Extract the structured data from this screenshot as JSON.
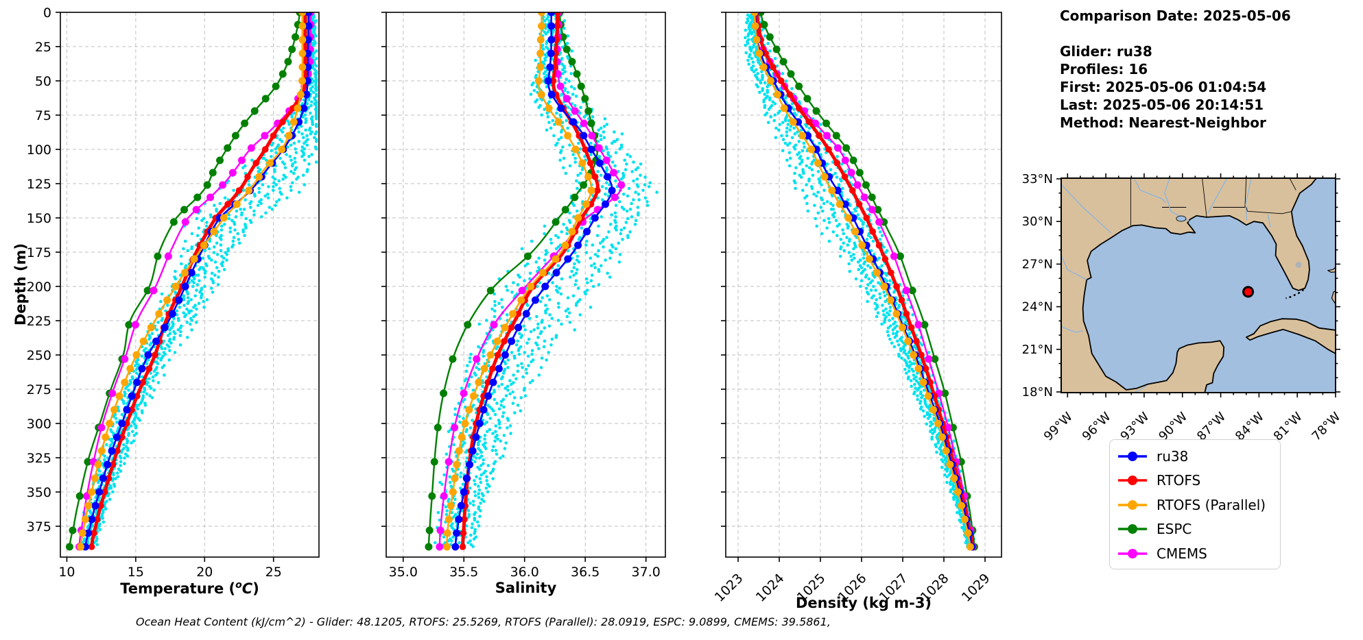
{
  "info": {
    "comparison_date": "Comparison Date: 2025-05-06",
    "glider": "Glider: ru38",
    "profiles": "Profiles: 16",
    "first": "First: 2025-05-06 01:04:54",
    "last": "Last: 2025-05-06 20:14:51",
    "method": "Method: Nearest-Neighbor"
  },
  "footer": {
    "text": "Ocean Heat Content (kJ/cm^2) - Glider: 48.1205,  RTOFS: 25.5269,  RTOFS (Parallel): 28.0919,  ESPC: 9.0899,  CMEMS: 39.5861,"
  },
  "legend": {
    "entries": [
      {
        "label": "ru38",
        "color": "#0000FF"
      },
      {
        "label": "RTOFS",
        "color": "#FF0000"
      },
      {
        "label": "RTOFS (Parallel)",
        "color": "#FFA500"
      },
      {
        "label": "ESPC",
        "color": "#008000"
      },
      {
        "label": "CMEMS",
        "color": "#FF00FF"
      }
    ]
  },
  "chart_data": [
    {
      "type": "line",
      "id": "temperature",
      "xlabel_pre": "Temperature (",
      "xlabel_sup": "o",
      "xlabel_c": "C",
      "xlabel_post": ")",
      "ylabel": "Depth (m)",
      "xlim": [
        9.53,
        28.3
      ],
      "xticks": [
        10,
        15,
        20,
        25
      ],
      "xtick_labels": [
        "10",
        "15",
        "20",
        "25"
      ],
      "ylim": [
        0,
        397.5
      ],
      "yticks": [
        0,
        25,
        50,
        75,
        100,
        125,
        150,
        175,
        200,
        225,
        250,
        275,
        300,
        325,
        350,
        375
      ],
      "grid": true,
      "depths": [
        0,
        10,
        25,
        40,
        55,
        70,
        85,
        100,
        115,
        130,
        150,
        175,
        200,
        225,
        250,
        275,
        300,
        325,
        350,
        375,
        390
      ],
      "series": [
        {
          "name": "ru38",
          "color": "#0000FF",
          "values": [
            27.55,
            27.55,
            27.5,
            27.5,
            27.45,
            27.2,
            26.6,
            25.7,
            24.5,
            23.3,
            21.1,
            19.75,
            18.6,
            17.4,
            15.9,
            14.9,
            14.0,
            13.1,
            12.35,
            11.7,
            11.35
          ]
        },
        {
          "name": "RTOFS",
          "color": "#FF0000",
          "values": [
            27.3,
            27.3,
            27.3,
            27.3,
            27.25,
            26.4,
            25.3,
            24.4,
            23.4,
            22.5,
            20.8,
            19.4,
            18.35,
            17.2,
            16.4,
            15.3,
            14.35,
            13.5,
            12.75,
            12.1,
            11.8
          ]
        },
        {
          "name": "RTOFS (Parallel)",
          "color": "#FFA500",
          "values": [
            27.1,
            27.1,
            27.1,
            27.1,
            27.05,
            26.75,
            26.3,
            25.6,
            24.3,
            23.2,
            21.4,
            19.6,
            17.9,
            16.4,
            15.05,
            14.0,
            13.1,
            12.4,
            11.8,
            11.25,
            11.0
          ]
        },
        {
          "name": "ESPC",
          "color": "#008000",
          "values": [
            26.9,
            26.75,
            26.4,
            25.9,
            25.1,
            23.8,
            22.6,
            21.6,
            20.7,
            19.9,
            17.95,
            16.7,
            16.0,
            14.6,
            14.1,
            13.2,
            12.4,
            11.6,
            11.0,
            10.5,
            10.2
          ]
        },
        {
          "name": "CMEMS",
          "color": "#FF00FF",
          "values": [
            27.7,
            27.7,
            27.65,
            27.6,
            27.2,
            26.3,
            24.9,
            23.3,
            22.2,
            20.9,
            18.8,
            17.5,
            16.45,
            15.1,
            14.3,
            13.4,
            12.6,
            12.0,
            11.5,
            11.1,
            10.9
          ]
        }
      ],
      "scatter": {
        "name": "glider-raw-profiles",
        "color": "#00E1EE",
        "n_profiles": 16,
        "seed": 7,
        "center_frac": 0.35,
        "spread_depths": [
          0,
          50,
          90,
          130,
          170,
          210,
          260,
          310,
          390
        ],
        "spread_values": [
          0.7,
          1.1,
          3.0,
          5.0,
          3.6,
          3.0,
          2.2,
          1.8,
          1.2
        ]
      }
    },
    {
      "type": "line",
      "id": "salinity",
      "xlabel": "Salinity",
      "xlim": [
        34.86,
        37.16
      ],
      "xticks": [
        35.0,
        35.5,
        36.0,
        36.5,
        37.0
      ],
      "xtick_labels": [
        "35.0",
        "35.5",
        "36.0",
        "36.5",
        "37.0"
      ],
      "ylim": [
        0,
        397.5
      ],
      "yticks": [
        0,
        25,
        50,
        75,
        100,
        125,
        150,
        175,
        200,
        225,
        250,
        275,
        300,
        325,
        350,
        375
      ],
      "grid": true,
      "depths": [
        0,
        10,
        25,
        40,
        55,
        70,
        85,
        100,
        115,
        130,
        150,
        175,
        200,
        225,
        250,
        275,
        300,
        325,
        350,
        375,
        390
      ],
      "series": [
        {
          "name": "ru38",
          "color": "#0000FF",
          "values": [
            36.22,
            36.22,
            36.22,
            36.21,
            36.2,
            36.3,
            36.45,
            36.55,
            36.65,
            36.72,
            36.58,
            36.4,
            36.17,
            35.98,
            35.84,
            35.72,
            35.63,
            35.56,
            35.5,
            35.45,
            35.43
          ]
        },
        {
          "name": "RTOFS",
          "color": "#FF0000",
          "values": [
            36.27,
            36.27,
            36.26,
            36.25,
            36.24,
            36.32,
            36.42,
            36.5,
            36.56,
            36.6,
            36.47,
            36.32,
            36.07,
            35.92,
            35.78,
            35.68,
            35.6,
            35.55,
            35.52,
            35.5,
            35.49
          ]
        },
        {
          "name": "RTOFS (Parallel)",
          "color": "#FFA500",
          "values": [
            36.14,
            36.14,
            36.13,
            36.13,
            36.12,
            36.2,
            36.32,
            36.42,
            36.5,
            36.55,
            36.44,
            36.3,
            36.05,
            35.87,
            35.72,
            35.6,
            35.51,
            35.45,
            35.41,
            35.37,
            35.36
          ]
        },
        {
          "name": "ESPC",
          "color": "#008000",
          "values": [
            36.29,
            36.3,
            36.34,
            36.41,
            36.47,
            36.52,
            36.56,
            36.6,
            36.56,
            36.45,
            36.28,
            36.06,
            35.75,
            35.55,
            35.42,
            35.34,
            35.29,
            35.26,
            35.24,
            35.22,
            35.21
          ]
        },
        {
          "name": "CMEMS",
          "color": "#FF00FF",
          "values": [
            36.28,
            36.28,
            36.27,
            36.27,
            36.3,
            36.4,
            36.52,
            36.62,
            36.72,
            36.79,
            36.51,
            36.27,
            36.01,
            35.77,
            35.62,
            35.51,
            35.43,
            35.38,
            35.34,
            35.31,
            35.3
          ]
        }
      ],
      "scatter": {
        "name": "glider-raw-profiles",
        "color": "#00E1EE",
        "n_profiles": 16,
        "seed": 11,
        "center_frac": 0.45,
        "spread_depths": [
          0,
          60,
          100,
          140,
          200,
          260,
          320,
          390
        ],
        "spread_values": [
          0.16,
          0.35,
          0.55,
          0.62,
          0.75,
          0.55,
          0.4,
          0.28
        ]
      }
    },
    {
      "type": "line",
      "id": "density",
      "xlabel": "Density (kg m-3)",
      "xlim": [
        1022.7,
        1029.4
      ],
      "xticks": [
        1023,
        1024,
        1025,
        1026,
        1027,
        1028,
        1029
      ],
      "xtick_labels": [
        "1023",
        "1024",
        "1025",
        "1026",
        "1027",
        "1028",
        "1029"
      ],
      "xtick_rotation": -45,
      "ylim": [
        0,
        397.5
      ],
      "yticks": [
        0,
        25,
        50,
        75,
        100,
        125,
        150,
        175,
        200,
        225,
        250,
        275,
        300,
        325,
        350,
        375
      ],
      "grid": true,
      "depths": [
        0,
        10,
        25,
        40,
        55,
        70,
        85,
        100,
        115,
        130,
        150,
        175,
        200,
        225,
        250,
        275,
        300,
        325,
        350,
        375,
        390
      ],
      "series": [
        {
          "name": "ru38",
          "color": "#0000FF",
          "values": [
            1023.42,
            1023.43,
            1023.5,
            1023.68,
            1023.95,
            1024.22,
            1024.58,
            1024.9,
            1025.12,
            1025.42,
            1025.8,
            1026.2,
            1026.6,
            1026.95,
            1027.3,
            1027.6,
            1027.9,
            1028.15,
            1028.38,
            1028.58,
            1028.68
          ]
        },
        {
          "name": "RTOFS",
          "color": "#FF0000",
          "values": [
            1023.45,
            1023.5,
            1023.6,
            1023.85,
            1024.15,
            1024.48,
            1024.85,
            1025.2,
            1025.5,
            1025.78,
            1026.12,
            1026.5,
            1026.85,
            1027.15,
            1027.45,
            1027.72,
            1027.97,
            1028.2,
            1028.42,
            1028.6,
            1028.7
          ]
        },
        {
          "name": "RTOFS (Parallel)",
          "color": "#FFA500",
          "values": [
            1023.4,
            1023.42,
            1023.48,
            1023.62,
            1023.88,
            1024.12,
            1024.45,
            1024.78,
            1025.02,
            1025.28,
            1025.68,
            1026.1,
            1026.55,
            1026.92,
            1027.26,
            1027.56,
            1027.86,
            1028.1,
            1028.34,
            1028.54,
            1028.64
          ]
        },
        {
          "name": "ESPC",
          "color": "#008000",
          "values": [
            1023.55,
            1023.65,
            1023.9,
            1024.18,
            1024.5,
            1024.85,
            1025.25,
            1025.65,
            1025.92,
            1026.18,
            1026.5,
            1026.9,
            1027.2,
            1027.5,
            1027.75,
            1028.0,
            1028.2,
            1028.4,
            1028.55,
            1028.68,
            1028.74
          ]
        },
        {
          "name": "CMEMS",
          "color": "#FF00FF",
          "values": [
            1023.4,
            1023.45,
            1023.58,
            1023.85,
            1024.15,
            1024.55,
            1025.0,
            1025.45,
            1025.72,
            1025.98,
            1026.38,
            1026.75,
            1027.05,
            1027.35,
            1027.6,
            1027.85,
            1028.08,
            1028.28,
            1028.48,
            1028.63,
            1028.7
          ]
        }
      ],
      "scatter": {
        "name": "glider-raw-profiles",
        "color": "#00E1EE",
        "n_profiles": 16,
        "seed": 13,
        "center_frac": 0.62,
        "spread_depths": [
          0,
          60,
          100,
          140,
          200,
          260,
          320,
          390
        ],
        "spread_values": [
          0.3,
          0.8,
          1.2,
          1.3,
          0.9,
          0.6,
          0.4,
          0.2
        ]
      }
    },
    {
      "type": "map",
      "id": "glider-location-map",
      "extent": {
        "lon": [
          -99.5,
          -78.0
        ],
        "lat": [
          17.95,
          33.05
        ]
      },
      "lat_ticks": [
        33,
        30,
        27,
        24,
        21,
        18
      ],
      "lat_tick_labels": [
        "33°N",
        "30°N",
        "27°N",
        "24°N",
        "21°N",
        "18°N"
      ],
      "lon_ticks": [
        -99,
        -96,
        -93,
        -90,
        -87,
        -84,
        -81,
        -78
      ],
      "lon_tick_labels": [
        "99°W",
        "96°W",
        "93°W",
        "90°W",
        "87°W",
        "84°W",
        "81°W",
        "78°W"
      ],
      "point": {
        "lon": -84.85,
        "lat": 25.05,
        "color": "#FF0000"
      },
      "land_color": "#D9C09C",
      "ocean_color": "#A2BFDF",
      "river_color": "#8AB4DF",
      "lake_color": "#ADB3B5"
    }
  ]
}
